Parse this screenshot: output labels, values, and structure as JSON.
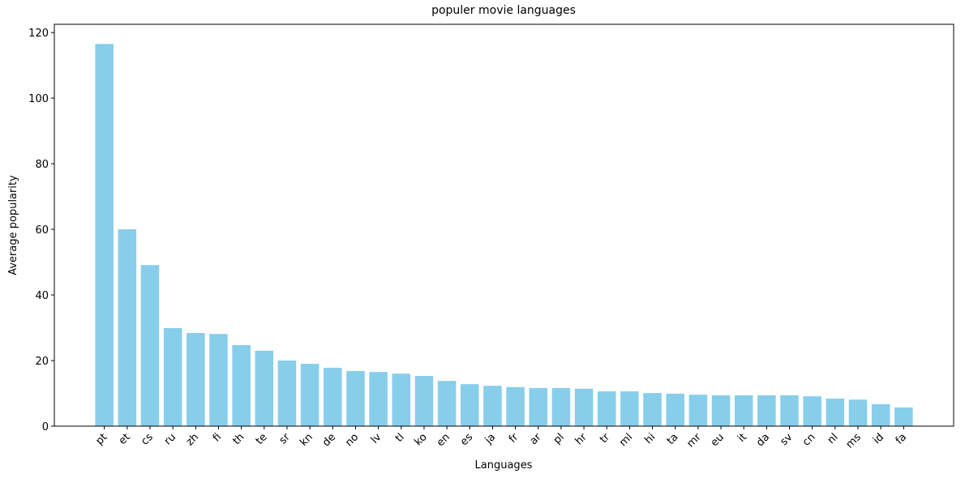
{
  "chart_data": {
    "type": "bar",
    "title": "populer movie languages",
    "xlabel": "Languages",
    "ylabel": "Average popularity",
    "categories": [
      "pt",
      "et",
      "cs",
      "ru",
      "zh",
      "fi",
      "th",
      "te",
      "sr",
      "kn",
      "de",
      "no",
      "lv",
      "tl",
      "ko",
      "en",
      "es",
      "ja",
      "fr",
      "ar",
      "pl",
      "hr",
      "tr",
      "ml",
      "hi",
      "ta",
      "mr",
      "eu",
      "it",
      "da",
      "sv",
      "cn",
      "nl",
      "ms",
      "id",
      "fa"
    ],
    "values": [
      116.5,
      60.0,
      49.1,
      29.9,
      28.4,
      28.1,
      24.7,
      23.0,
      20.0,
      19.0,
      17.8,
      16.8,
      16.5,
      16.0,
      15.3,
      13.8,
      12.8,
      12.3,
      11.9,
      11.6,
      11.6,
      11.4,
      10.6,
      10.6,
      10.1,
      9.9,
      9.6,
      9.4,
      9.4,
      9.4,
      9.4,
      9.1,
      8.4,
      8.1,
      6.7,
      5.7
    ],
    "color": "#87ceeb",
    "ylim": [
      0,
      122.5
    ],
    "yticks": [
      0,
      20,
      40,
      60,
      80,
      100,
      120
    ]
  }
}
